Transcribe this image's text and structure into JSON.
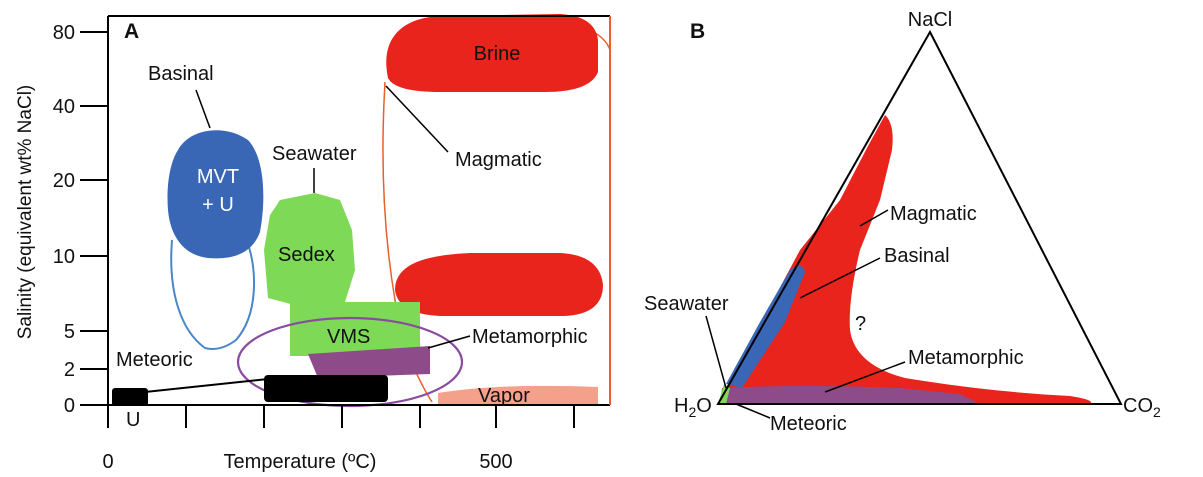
{
  "panel_a": {
    "letter": "A",
    "y_axis_label": "Salinity (equivalent wt% NaCl)",
    "x_axis_label": "Temperature (ºC)",
    "y_ticks": [
      "80",
      "40",
      "20",
      "10",
      "5",
      "2",
      "0"
    ],
    "x_ticks": [
      "0",
      "500"
    ],
    "fields": {
      "brine": "Brine",
      "magmatic": "Magmatic",
      "basinal": "Basinal",
      "mvt_line1": "MVT",
      "mvt_line2": "+ U",
      "seawater": "Seawater",
      "sedex": "Sedex",
      "vms": "VMS",
      "metamorphic": "Metamorphic",
      "meteoric": "Meteoric",
      "vapor": "Vapor",
      "u": "U"
    }
  },
  "panel_b": {
    "letter": "B",
    "vertices": {
      "top": "NaCl",
      "left_base": "H",
      "left_sub": "2",
      "left_end": "O",
      "right_base": "CO",
      "right_sub": "2"
    },
    "fields": {
      "magmatic": "Magmatic",
      "basinal": "Basinal",
      "seawater": "Seawater",
      "question": "?",
      "metamorphic": "Metamorphic",
      "meteoric": "Meteoric"
    }
  },
  "colors": {
    "magmatic_red": "#e8241c",
    "vapor_salmon": "#f4a08a",
    "basinal_blue": "#3a66b6",
    "basinal_outline": "#4a86c8",
    "seawater_green": "#7ed957",
    "metamorphic_purple": "#8e4b8a",
    "metamorphic_outline": "#8a4ca0",
    "meteoric_black": "#000000",
    "frame_orange": "#e8602a"
  }
}
